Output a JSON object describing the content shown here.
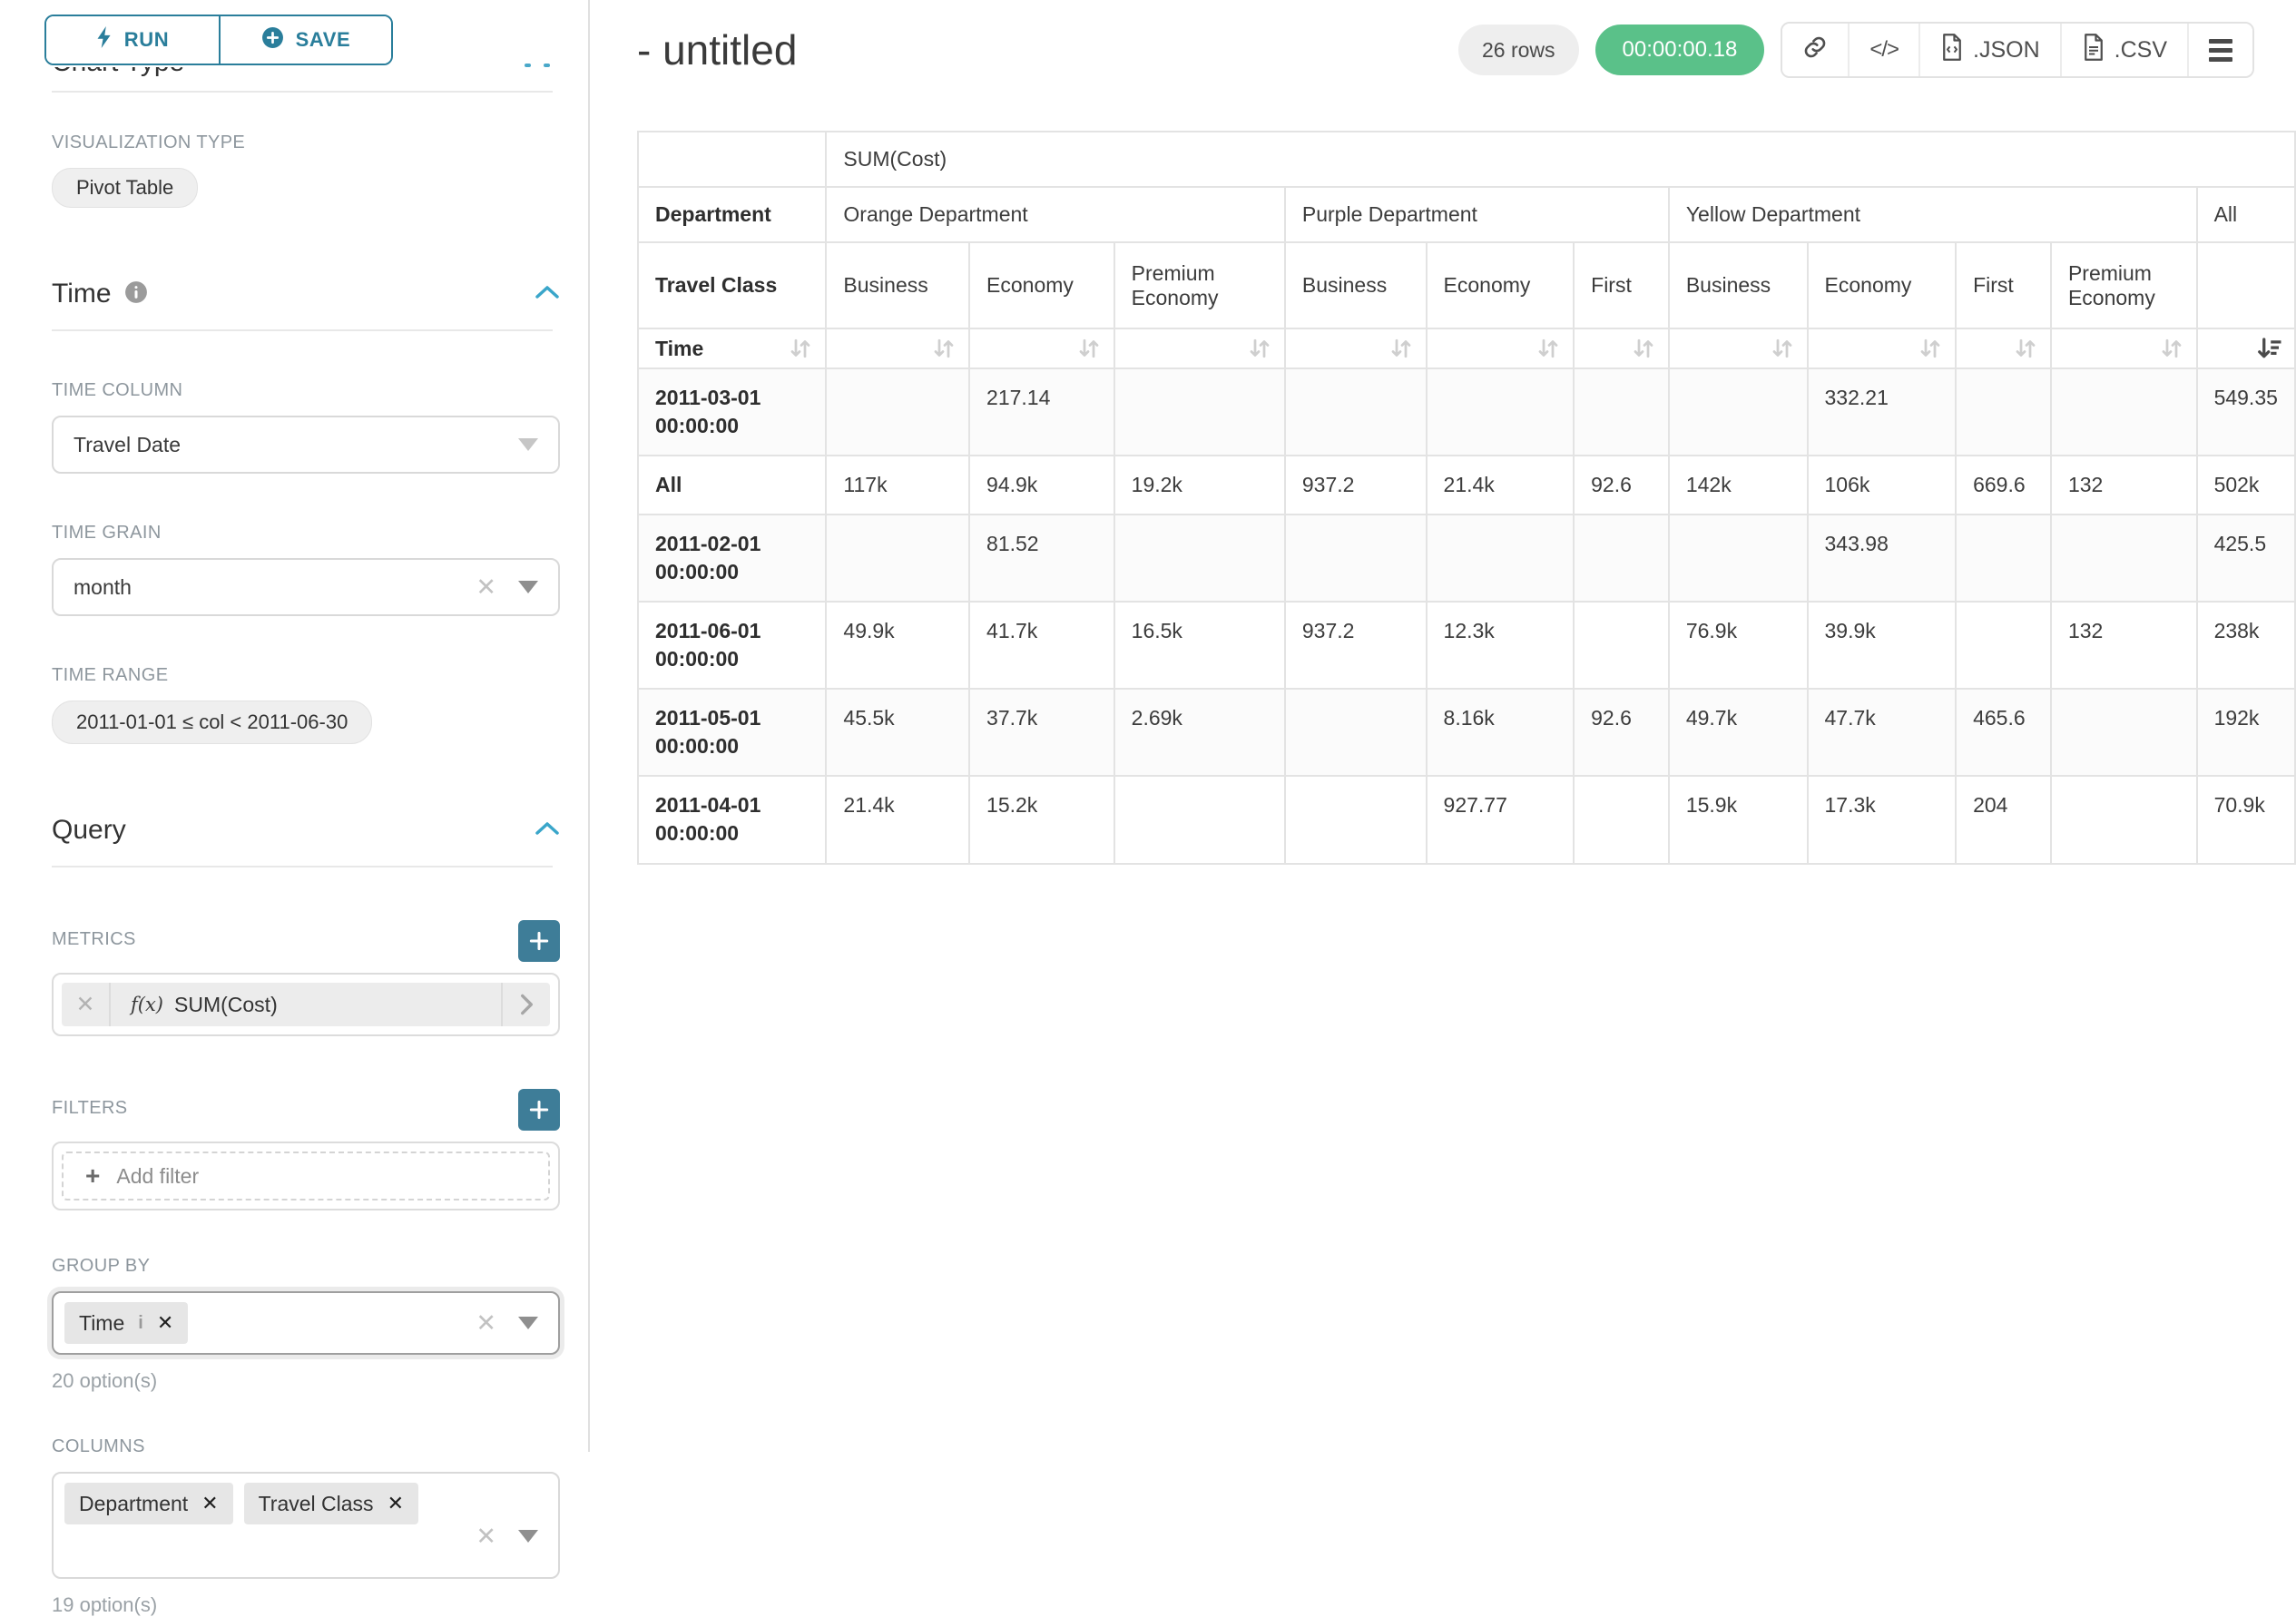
{
  "colors": {
    "accent_teal": "#2a7e9b",
    "accent_teal_fill": "#3e7d98",
    "accent_blue_chevron": "#3aa6ca",
    "success_green": "#5ac189"
  },
  "sidebar": {
    "run_label": "RUN",
    "save_label": "SAVE",
    "chart_type_heading": "Chart Type",
    "visualization": {
      "label": "VISUALIZATION TYPE",
      "value": "Pivot Table"
    },
    "time": {
      "title": "Time",
      "time_column": {
        "label": "TIME COLUMN",
        "value": "Travel Date"
      },
      "time_grain": {
        "label": "TIME GRAIN",
        "value": "month"
      },
      "time_range": {
        "label": "TIME RANGE",
        "value": "2011-01-01 ≤ col < 2011-06-30"
      }
    },
    "query": {
      "title": "Query",
      "metrics": {
        "label": "METRICS",
        "fx": "f(x)",
        "name": "SUM(Cost)"
      },
      "filters": {
        "label": "FILTERS",
        "add_label": "Add filter"
      },
      "group_by": {
        "label": "GROUP BY",
        "tags": [
          "Time"
        ],
        "hint": "20 option(s)"
      },
      "columns": {
        "label": "COLUMNS",
        "tags": [
          "Department",
          "Travel Class"
        ],
        "hint": "19 option(s)"
      }
    }
  },
  "header": {
    "title": "- untitled",
    "rows_badge": "26 rows",
    "timer": "00:00:00.18",
    "export_json": ".JSON",
    "export_csv": ".CSV"
  },
  "table": {
    "metric_label": "SUM(Cost)",
    "dim_department_label": "Department",
    "dim_travel_class_label": "Travel Class",
    "dim_time_label": "Time",
    "groups": [
      {
        "label": "Orange Department",
        "span": 3
      },
      {
        "label": "Purple Department",
        "span": 3
      },
      {
        "label": "Yellow Department",
        "span": 4
      },
      {
        "label": "All",
        "span": 1
      }
    ],
    "leaf_columns": [
      "Business",
      "Economy",
      "Premium Economy",
      "Business",
      "Economy",
      "First",
      "Business",
      "Economy",
      "First",
      "Premium Economy",
      ""
    ],
    "sort": {
      "active_leaf_index": 10,
      "direction": "desc"
    },
    "rows": [
      {
        "label": "2011-03-01 00:00:00",
        "values": [
          "",
          "217.14",
          "",
          "",
          "",
          "",
          "",
          "332.21",
          "",
          "",
          "549.35"
        ]
      },
      {
        "label": "All",
        "values": [
          "117k",
          "94.9k",
          "19.2k",
          "937.2",
          "21.4k",
          "92.6",
          "142k",
          "106k",
          "669.6",
          "132",
          "502k"
        ]
      },
      {
        "label": "2011-02-01 00:00:00",
        "values": [
          "",
          "81.52",
          "",
          "",
          "",
          "",
          "",
          "343.98",
          "",
          "",
          "425.5"
        ]
      },
      {
        "label": "2011-06-01 00:00:00",
        "values": [
          "49.9k",
          "41.7k",
          "16.5k",
          "937.2",
          "12.3k",
          "",
          "76.9k",
          "39.9k",
          "",
          "132",
          "238k"
        ]
      },
      {
        "label": "2011-05-01 00:00:00",
        "values": [
          "45.5k",
          "37.7k",
          "2.69k",
          "",
          "8.16k",
          "92.6",
          "49.7k",
          "47.7k",
          "465.6",
          "",
          "192k"
        ]
      },
      {
        "label": "2011-04-01 00:00:00",
        "values": [
          "21.4k",
          "15.2k",
          "",
          "",
          "927.77",
          "",
          "15.9k",
          "17.3k",
          "204",
          "",
          "70.9k"
        ]
      }
    ]
  }
}
